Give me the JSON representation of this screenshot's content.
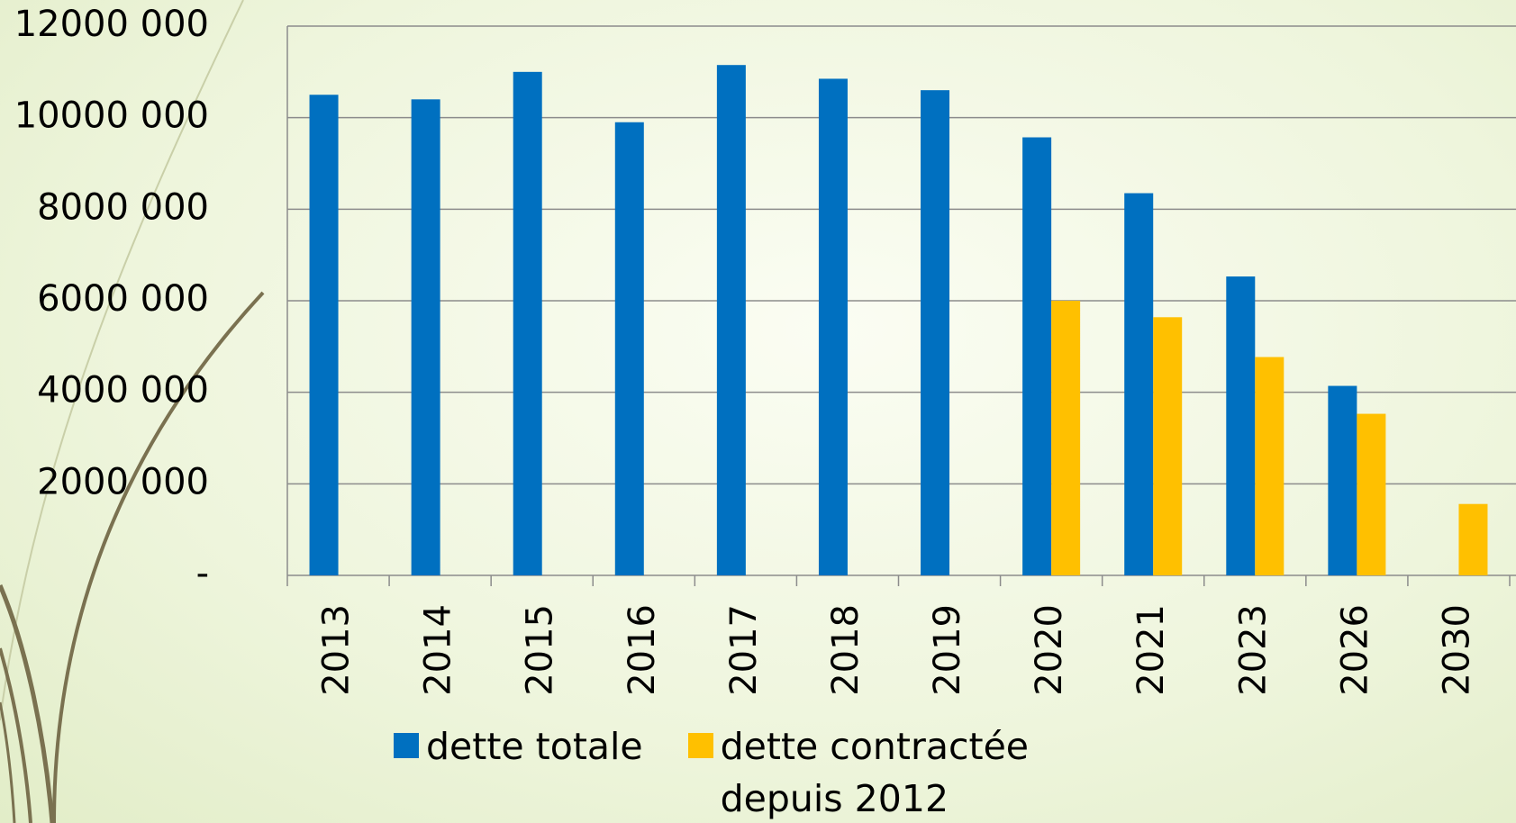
{
  "chart_data": {
    "type": "bar",
    "categories": [
      "2013",
      "2014",
      "2015",
      "2016",
      "2017",
      "2018",
      "2019",
      "2020",
      "2021",
      "2023",
      "2026",
      "2030"
    ],
    "series": [
      {
        "name": "dette totale",
        "color": "#0070c0",
        "values": [
          10500000,
          10400000,
          11000000,
          9900000,
          11150000,
          10850000,
          10600000,
          9570000,
          8350000,
          6530000,
          4140000,
          null
        ]
      },
      {
        "name": "dette contractée depuis 2012",
        "color": "#ffc000",
        "values": [
          null,
          null,
          null,
          null,
          null,
          null,
          null,
          6000000,
          5640000,
          4770000,
          3530000,
          1560000
        ]
      }
    ],
    "ylim": [
      0,
      12000000
    ],
    "yticks": [
      {
        "value": 0,
        "label": "-"
      },
      {
        "value": 2000000,
        "label": "2000 000"
      },
      {
        "value": 4000000,
        "label": "4000 000"
      },
      {
        "value": 6000000,
        "label": "6000 000"
      },
      {
        "value": 8000000,
        "label": "8000 000"
      },
      {
        "value": 10000000,
        "label": "10000 000"
      },
      {
        "value": 12000000,
        "label": "12000 000"
      }
    ],
    "grid": true
  }
}
